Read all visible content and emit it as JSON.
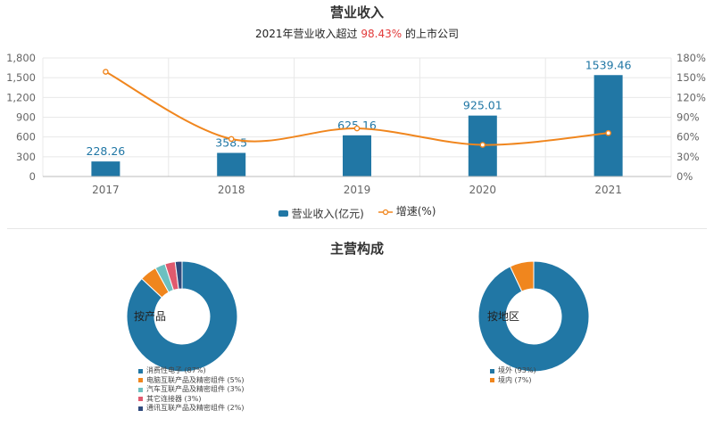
{
  "header": {
    "title": "营业收入",
    "subtitle_prefix": "2021年营业收入超过 ",
    "subtitle_highlight": "98.43%",
    "subtitle_suffix": " 的上市公司"
  },
  "section2": {
    "title": "主营构成"
  },
  "colors": {
    "bar": "#2177a5",
    "line": "#f0861e",
    "grid": "#e8e8e8",
    "axis": "#999999",
    "highlight": "#e23b3b"
  },
  "chart_data": [
    {
      "type": "bar",
      "categories": [
        "2017",
        "2018",
        "2019",
        "2020",
        "2021"
      ],
      "series": [
        {
          "name": "营业收入(亿元)",
          "type": "bar",
          "axis": "left",
          "values": [
            228.26,
            358.5,
            625.16,
            925.01,
            1539.46
          ],
          "labels": [
            "228.26",
            "358.5",
            "625.16",
            "925.01",
            "1539.46"
          ]
        },
        {
          "name": "增速(%)",
          "type": "line",
          "axis": "right",
          "values": [
            159,
            57,
            73,
            48,
            66
          ]
        }
      ],
      "yleft": {
        "ylim": [
          0,
          1800
        ],
        "ticks": [
          0,
          300,
          600,
          900,
          1200,
          1500,
          1800
        ],
        "tick_labels": [
          "0",
          "300",
          "600",
          "900",
          "1,200",
          "1,500",
          "1,800"
        ]
      },
      "yright": {
        "ylim": [
          0,
          180
        ],
        "ticks": [
          0,
          30,
          60,
          90,
          120,
          150,
          180
        ],
        "tick_labels": [
          "0%",
          "30%",
          "60%",
          "90%",
          "120%",
          "150%",
          "180%"
        ]
      },
      "legend_position": "bottom",
      "grid": true
    },
    {
      "type": "pie",
      "center_label": "按产品",
      "slices": [
        {
          "label": "消费性电子 (87%)",
          "value": 87,
          "color": "#2177a5"
        },
        {
          "label": "电脑互联产品及精密组件 (5%)",
          "value": 5,
          "color": "#f0861e"
        },
        {
          "label": "汽车互联产品及精密组件 (3%)",
          "value": 3,
          "color": "#6cc0c0"
        },
        {
          "label": "其它连接器 (3%)",
          "value": 3,
          "color": "#e05a6e"
        },
        {
          "label": "通讯互联产品及精密组件 (2%)",
          "value": 2,
          "color": "#2f4a7d"
        }
      ]
    },
    {
      "type": "pie",
      "center_label": "按地区",
      "slices": [
        {
          "label": "境外 (93%)",
          "value": 93,
          "color": "#2177a5"
        },
        {
          "label": "境内 (7%)",
          "value": 7,
          "color": "#f0861e"
        }
      ]
    }
  ]
}
